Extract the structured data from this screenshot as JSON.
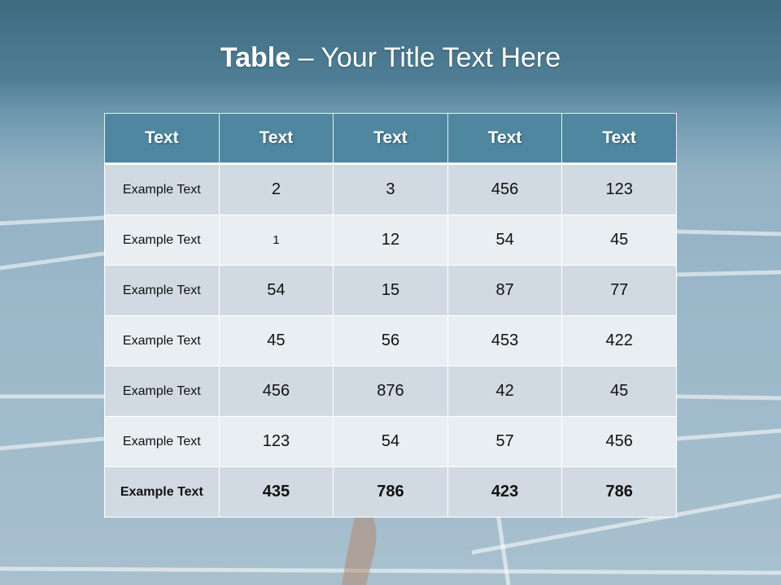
{
  "slide": {
    "title_bold": "Table",
    "title_rest": " – Your Title Text Here"
  },
  "table": {
    "headers": [
      "Text",
      "Text",
      "Text",
      "Text",
      "Text"
    ],
    "rows": [
      [
        "Example Text",
        "2",
        "3",
        "456",
        "123"
      ],
      [
        "Example Text",
        "1",
        "12",
        "54",
        "45"
      ],
      [
        "Example Text",
        "54",
        "15",
        "87",
        "77"
      ],
      [
        "Example Text",
        "45",
        "56",
        "453",
        "422"
      ],
      [
        "Example Text",
        "456",
        "876",
        "42",
        "45"
      ],
      [
        "Example Text",
        "123",
        "54",
        "57",
        "456"
      ],
      [
        "Example Text",
        "435",
        "786",
        "423",
        "786"
      ]
    ]
  },
  "colors": {
    "header": "#4f87a0",
    "row_odd": "#d1dae2",
    "row_even": "#e8eef1"
  }
}
